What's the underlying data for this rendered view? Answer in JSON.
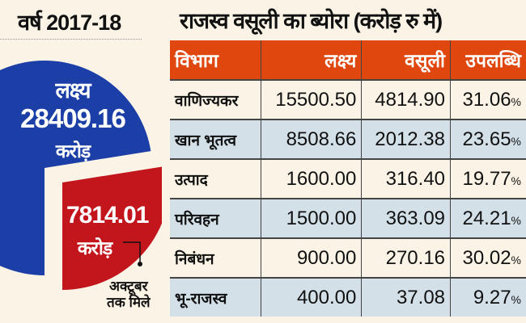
{
  "left_panel": {
    "year": "वर्ष 2017-18",
    "note_line1": "अक्टूबर",
    "note_line2": "तक मिले"
  },
  "chart_data": [
    {
      "type": "pie",
      "title": "वर्ष 2017-18",
      "slices": [
        {
          "label": "लक्ष्य",
          "value": 28409.16,
          "value_text": "28409.16",
          "unit": "करोड़",
          "color": "#1b3fa6"
        },
        {
          "label": "अक्टूबर तक मिले",
          "value": 7814.01,
          "value_text": "7814.01",
          "unit": "करोड़",
          "color": "#c3161c"
        }
      ]
    },
    {
      "type": "table",
      "title": "राजस्व वसूली का ब्योरा (करोड़ रु में)",
      "header_color": "#e0470f",
      "alt_row_color": "#d3e0e8",
      "columns": [
        "विभाग",
        "लक्ष्य",
        "वसूली",
        "उपलब्धि"
      ],
      "rows": [
        {
          "dept": "वाणिज्यकर",
          "target": "15500.50",
          "collected": "4814.90",
          "pct": "31.06",
          "pct_sign": "%"
        },
        {
          "dept": "खान भूतत्व",
          "target": "8508.66",
          "collected": "2012.38",
          "pct": "23.65",
          "pct_sign": "%"
        },
        {
          "dept": "उत्पाद",
          "target": "1600.00",
          "collected": "316.40",
          "pct": "19.77",
          "pct_sign": "%"
        },
        {
          "dept": "परिवहन",
          "target": "1500.00",
          "collected": "363.09",
          "pct": "24.21",
          "pct_sign": "%"
        },
        {
          "dept": "निबंधन",
          "target": "900.00",
          "collected": "270.16",
          "pct": "30.02",
          "pct_sign": "%"
        },
        {
          "dept": "भू-राजस्व",
          "target": "400.00",
          "collected": "37.08",
          "pct": "9.27",
          "pct_sign": "%"
        }
      ]
    }
  ]
}
